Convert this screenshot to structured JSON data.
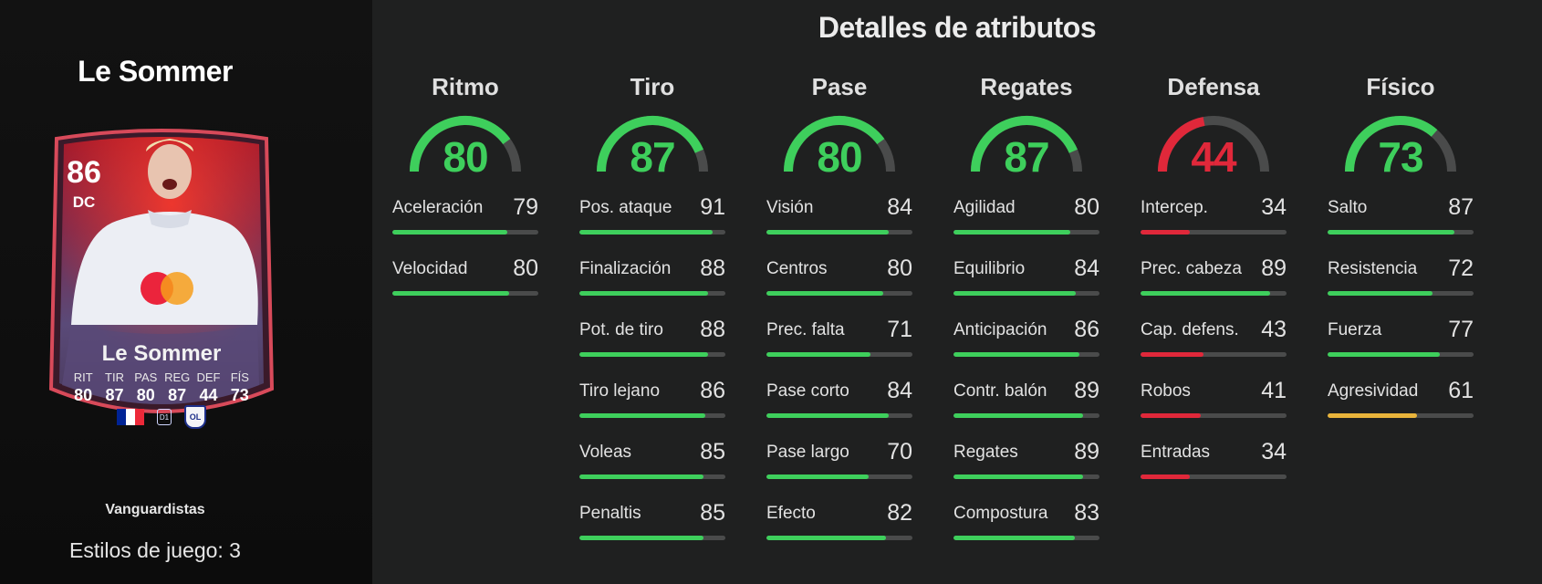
{
  "colors": {
    "high": "#3ecf5c",
    "mid": "#e9b43b",
    "low": "#e0283a",
    "track": "#4a4b4b"
  },
  "player": {
    "name": "Le Sommer",
    "rating": "86",
    "position": "DC",
    "card_name": "Le Sommer",
    "card_stats": [
      {
        "label": "RIT",
        "value": "80"
      },
      {
        "label": "TIR",
        "value": "87"
      },
      {
        "label": "PAS",
        "value": "80"
      },
      {
        "label": "REG",
        "value": "87"
      },
      {
        "label": "DEF",
        "value": "44"
      },
      {
        "label": "FÍS",
        "value": "73"
      }
    ],
    "nation_flag": [
      "#002395",
      "#ffffff",
      "#ED2939"
    ],
    "league_icon": "league-icon",
    "club_badge": "OL",
    "card_version": "Vanguardistas",
    "playstyles": "Estilos de juego: 3"
  },
  "section_title": "Detalles de atributos",
  "categories": [
    {
      "title": "Ritmo",
      "value": 80,
      "stats": [
        {
          "name": "Aceleración",
          "value": 79
        },
        {
          "name": "Velocidad",
          "value": 80
        }
      ]
    },
    {
      "title": "Tiro",
      "value": 87,
      "stats": [
        {
          "name": "Pos. ataque",
          "value": 91
        },
        {
          "name": "Finalización",
          "value": 88
        },
        {
          "name": "Pot. de tiro",
          "value": 88
        },
        {
          "name": "Tiro lejano",
          "value": 86
        },
        {
          "name": "Voleas",
          "value": 85
        },
        {
          "name": "Penaltis",
          "value": 85
        }
      ]
    },
    {
      "title": "Pase",
      "value": 80,
      "stats": [
        {
          "name": "Visión",
          "value": 84
        },
        {
          "name": "Centros",
          "value": 80
        },
        {
          "name": "Prec. falta",
          "value": 71
        },
        {
          "name": "Pase corto",
          "value": 84
        },
        {
          "name": "Pase largo",
          "value": 70
        },
        {
          "name": "Efecto",
          "value": 82
        }
      ]
    },
    {
      "title": "Regates",
      "value": 87,
      "stats": [
        {
          "name": "Agilidad",
          "value": 80
        },
        {
          "name": "Equilibrio",
          "value": 84
        },
        {
          "name": "Anticipación",
          "value": 86
        },
        {
          "name": "Contr. balón",
          "value": 89
        },
        {
          "name": "Regates",
          "value": 89
        },
        {
          "name": "Compostura",
          "value": 83
        }
      ]
    },
    {
      "title": "Defensa",
      "value": 44,
      "stats": [
        {
          "name": "Intercep.",
          "value": 34
        },
        {
          "name": "Prec. cabeza",
          "value": 89
        },
        {
          "name": "Cap. defens.",
          "value": 43
        },
        {
          "name": "Robos",
          "value": 41
        },
        {
          "name": "Entradas",
          "value": 34
        }
      ]
    },
    {
      "title": "Físico",
      "value": 73,
      "stats": [
        {
          "name": "Salto",
          "value": 87
        },
        {
          "name": "Resistencia",
          "value": 72
        },
        {
          "name": "Fuerza",
          "value": 77
        },
        {
          "name": "Agresividad",
          "value": 61
        }
      ]
    }
  ]
}
